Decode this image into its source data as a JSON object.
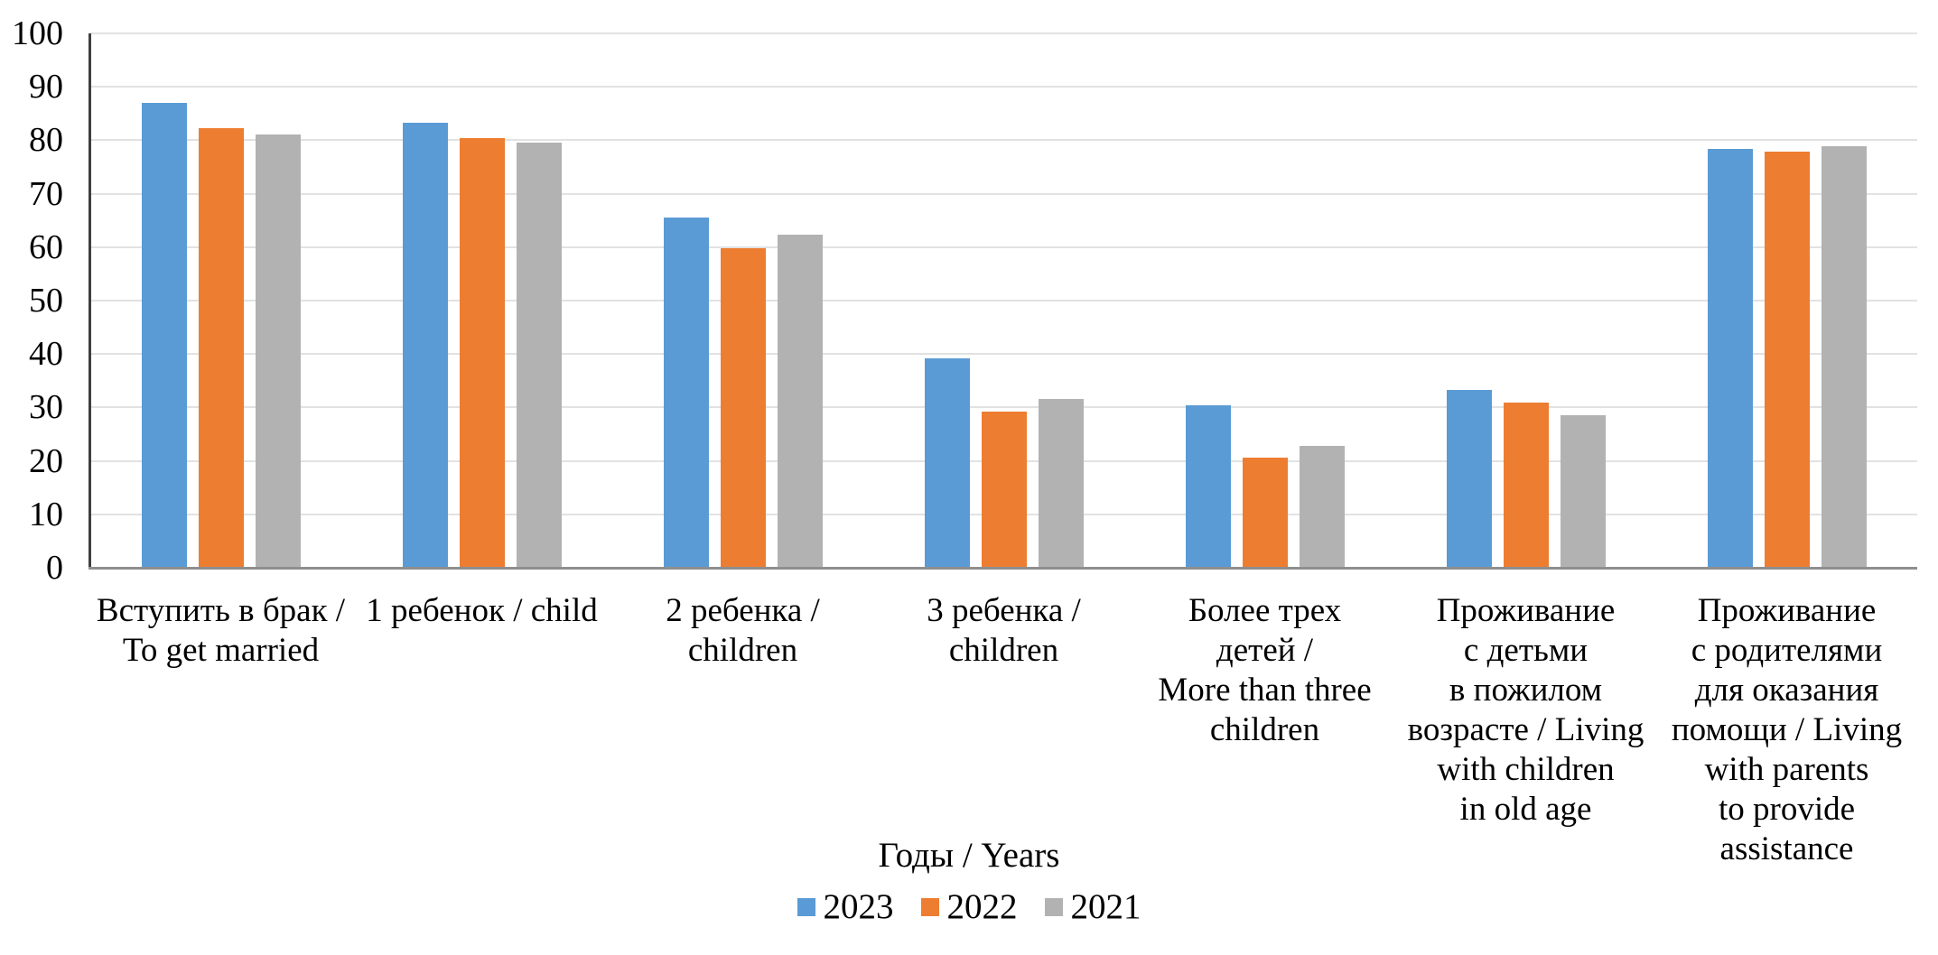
{
  "chart_data": {
    "type": "bar",
    "title": "",
    "legend_title": "Годы / Years",
    "legend_position": "bottom",
    "ylim": [
      0,
      100
    ],
    "ytick_step": 10,
    "ytick_labels": [
      "0",
      "10",
      "20",
      "30",
      "40",
      "50",
      "60",
      "70",
      "80",
      "90",
      "100"
    ],
    "grid": true,
    "categories": [
      "Вступить в брак / To get married",
      "1 ребенок / child",
      "2 ребенка / children",
      "3 ребенка / children",
      "Более трех детей / More than three children",
      "Проживание с детьми в пожилом возрасте / Living with children in old age",
      "Проживание с родителями для оказания помощи / Living with parents to provide assistance"
    ],
    "category_lines": [
      [
        "Вступить в брак /",
        "To get married"
      ],
      [
        "1 ребенок / child"
      ],
      [
        "2 ребенка /",
        "children"
      ],
      [
        "3 ребенка /",
        "children"
      ],
      [
        "Более трех",
        "детей /",
        "More than three",
        "children"
      ],
      [
        "Проживание",
        "с детьми",
        "в пожилом",
        "возрасте / Living",
        "with children",
        "in old age"
      ],
      [
        "Проживание",
        "с родителями",
        "для оказания",
        "помощи / Living",
        "with parents",
        "to provide",
        "assistance"
      ]
    ],
    "series": [
      {
        "name": "2023",
        "color": "#5B9BD5",
        "values": [
          87.0,
          83.3,
          65.5,
          39.2,
          30.4,
          33.3,
          78.4
        ]
      },
      {
        "name": "2022",
        "color": "#ED7D31",
        "values": [
          82.2,
          80.4,
          59.8,
          29.2,
          20.6,
          30.9,
          77.8
        ]
      },
      {
        "name": "2021",
        "color": "#B2B2B2",
        "values": [
          81.1,
          79.6,
          62.3,
          31.6,
          22.8,
          28.6,
          78.9
        ]
      }
    ],
    "colors": {
      "gridline": "#e2e2e2",
      "y_axis_line": "#3f3f3f",
      "x_axis_line": "#8f8f8f"
    }
  }
}
